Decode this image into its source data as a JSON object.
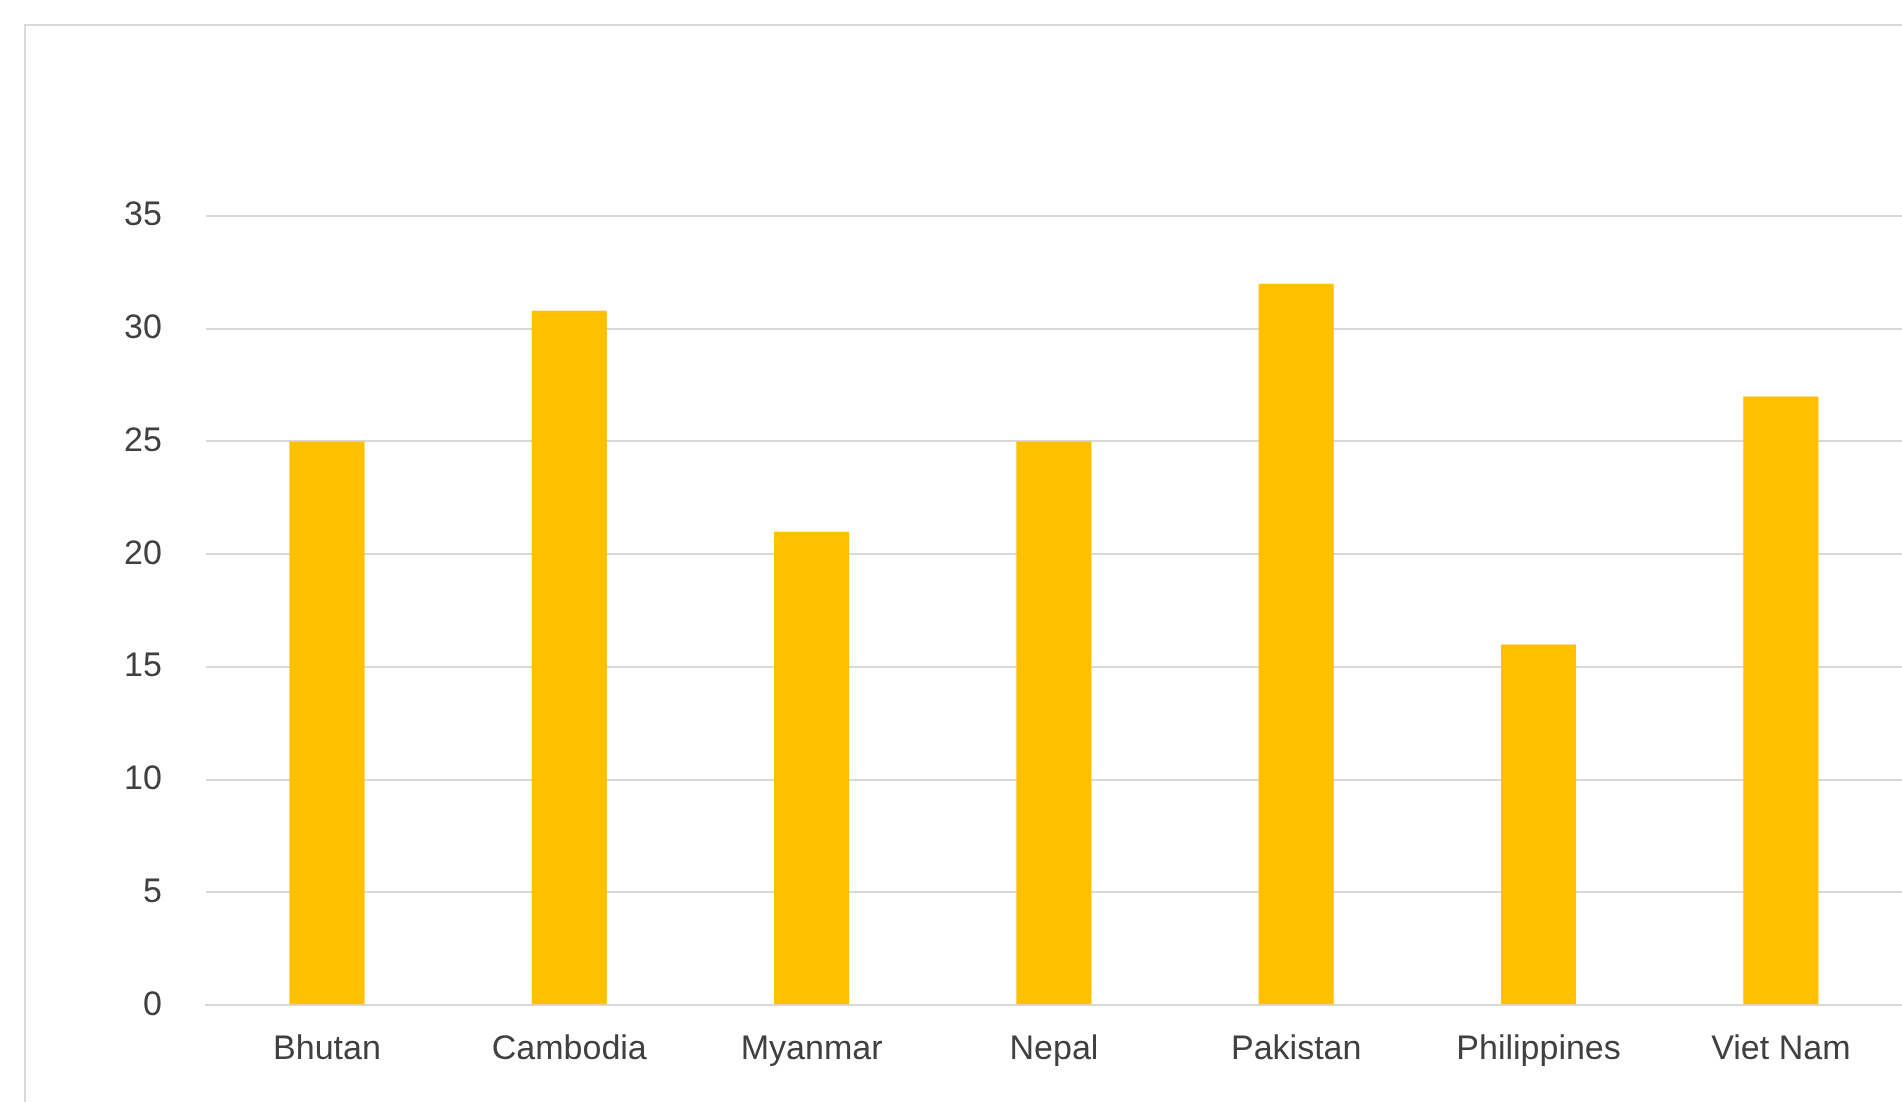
{
  "chart_data": {
    "type": "bar",
    "categories": [
      "Bhutan",
      "Cambodia",
      "Myanmar",
      "Nepal",
      "Pakistan",
      "Philippines",
      "Viet Nam"
    ],
    "values": [
      25,
      30.8,
      21,
      25,
      32,
      16,
      27
    ],
    "color": "#ffc000",
    "ylim": [
      0,
      35
    ],
    "yticks": [
      0,
      5,
      10,
      15,
      20,
      25,
      30,
      35
    ],
    "grid": "y",
    "legend": false
  }
}
